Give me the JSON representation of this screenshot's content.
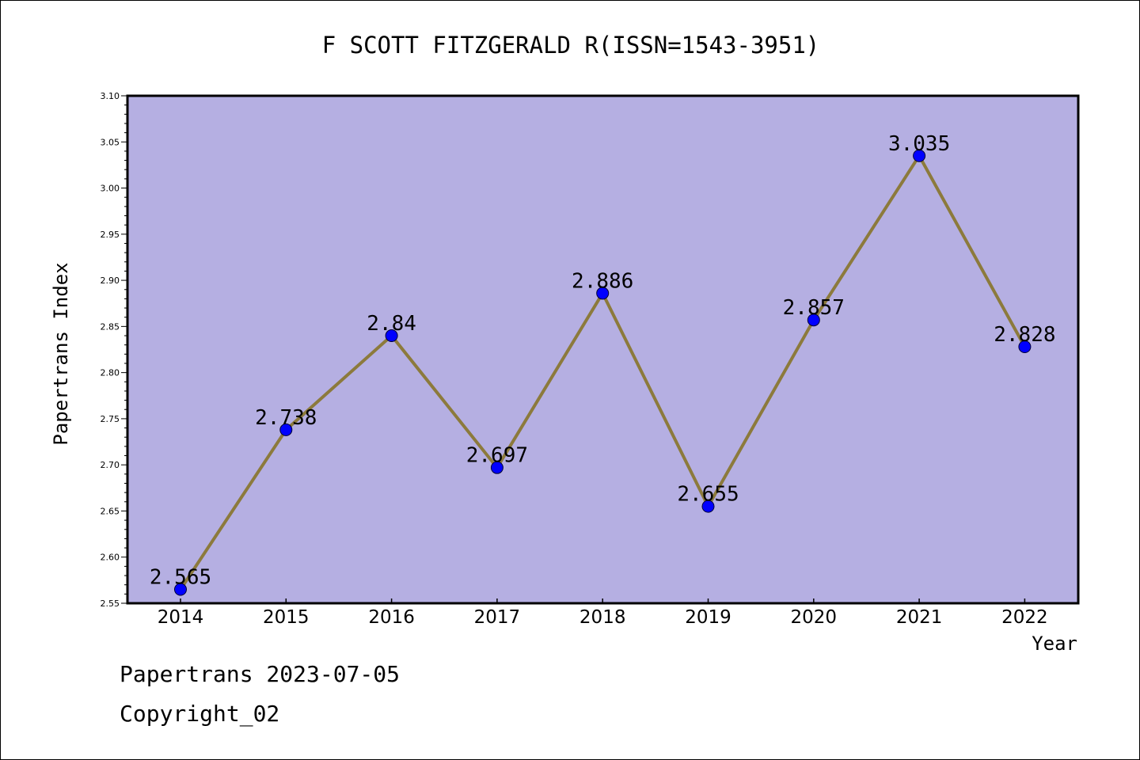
{
  "chart_data": {
    "type": "line",
    "title": "F SCOTT FITZGERALD R(ISSN=1543-3951)",
    "xlabel": "Year",
    "ylabel": "Papertrans Index",
    "categories": [
      "2014",
      "2015",
      "2016",
      "2017",
      "2018",
      "2019",
      "2020",
      "2021",
      "2022"
    ],
    "series": [
      {
        "values": [
          2.565,
          2.738,
          2.84,
          2.697,
          2.886,
          2.655,
          2.857,
          3.035,
          2.828
        ],
        "labels": [
          "2.565",
          "2.738",
          "2.84",
          "2.697",
          "2.886",
          "2.655",
          "2.857",
          "3.035",
          "2.828"
        ]
      }
    ],
    "ylim": [
      2.55,
      3.1
    ],
    "yticks": [
      "2.55",
      "2.60",
      "2.65",
      "2.70",
      "2.75",
      "2.80",
      "2.85",
      "2.90",
      "2.95",
      "3.00",
      "3.05",
      "3.10"
    ],
    "grid": false,
    "colors": {
      "plot_background": "#b5afe2",
      "line": "#8c7a3c",
      "marker": "#0000ff"
    }
  },
  "footer": {
    "date": "Papertrans 2023-07-05",
    "copyright": "Copyright_02"
  }
}
